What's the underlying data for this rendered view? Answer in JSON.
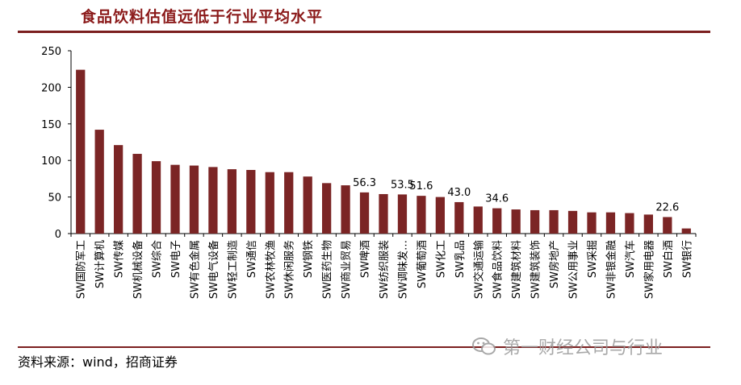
{
  "title": "食品饮料估值远低于行业平均水平",
  "source": "资料来源：wind，招商证券",
  "watermark": "第一财经公司与行业",
  "bar_color": "#7B2525",
  "chart_data": {
    "type": "bar",
    "title": "食品饮料估值远低于行业平均水平",
    "xlabel": "",
    "ylabel": "",
    "ylim": [
      0,
      250
    ],
    "yticks": [
      0,
      50,
      100,
      150,
      200,
      250
    ],
    "grid": false,
    "legend": "none",
    "categories": [
      "SW国防军工",
      "SW计算机",
      "SW传媒",
      "SW机械设备",
      "SW综合",
      "SW电子",
      "SW有色金属",
      "SW电气设备",
      "SW轻工制造",
      "SW通信",
      "SW农林牧渔",
      "SW休闲服务",
      "SW钢铁",
      "SW医药生物",
      "SW商业贸易",
      "SW啤酒",
      "SW纺织服装",
      "SW调味发…",
      "SW葡萄酒",
      "SW化工",
      "SW乳品",
      "SW交通运输",
      "SW食品饮料",
      "SW建筑材料",
      "SW建筑装饰",
      "SW房地产",
      "SW公用事业",
      "SW采掘",
      "SW非银金融",
      "SW汽车",
      "SW家用电器",
      "SW白酒",
      "SW银行"
    ],
    "values": [
      224,
      142,
      121,
      109,
      99,
      94,
      93,
      91,
      88,
      87,
      84,
      84,
      78,
      69,
      66,
      56.3,
      54,
      53.5,
      51.6,
      50,
      43.0,
      37,
      34.6,
      33,
      32,
      32,
      31,
      29,
      29,
      28,
      26,
      22.6,
      7
    ],
    "data_labels": [
      {
        "index": 15,
        "text": "56.3"
      },
      {
        "index": 17,
        "text": "53.5"
      },
      {
        "index": 18,
        "text": "51.6"
      },
      {
        "index": 20,
        "text": "43.0"
      },
      {
        "index": 22,
        "text": "34.6"
      },
      {
        "index": 31,
        "text": "22.6"
      }
    ]
  }
}
